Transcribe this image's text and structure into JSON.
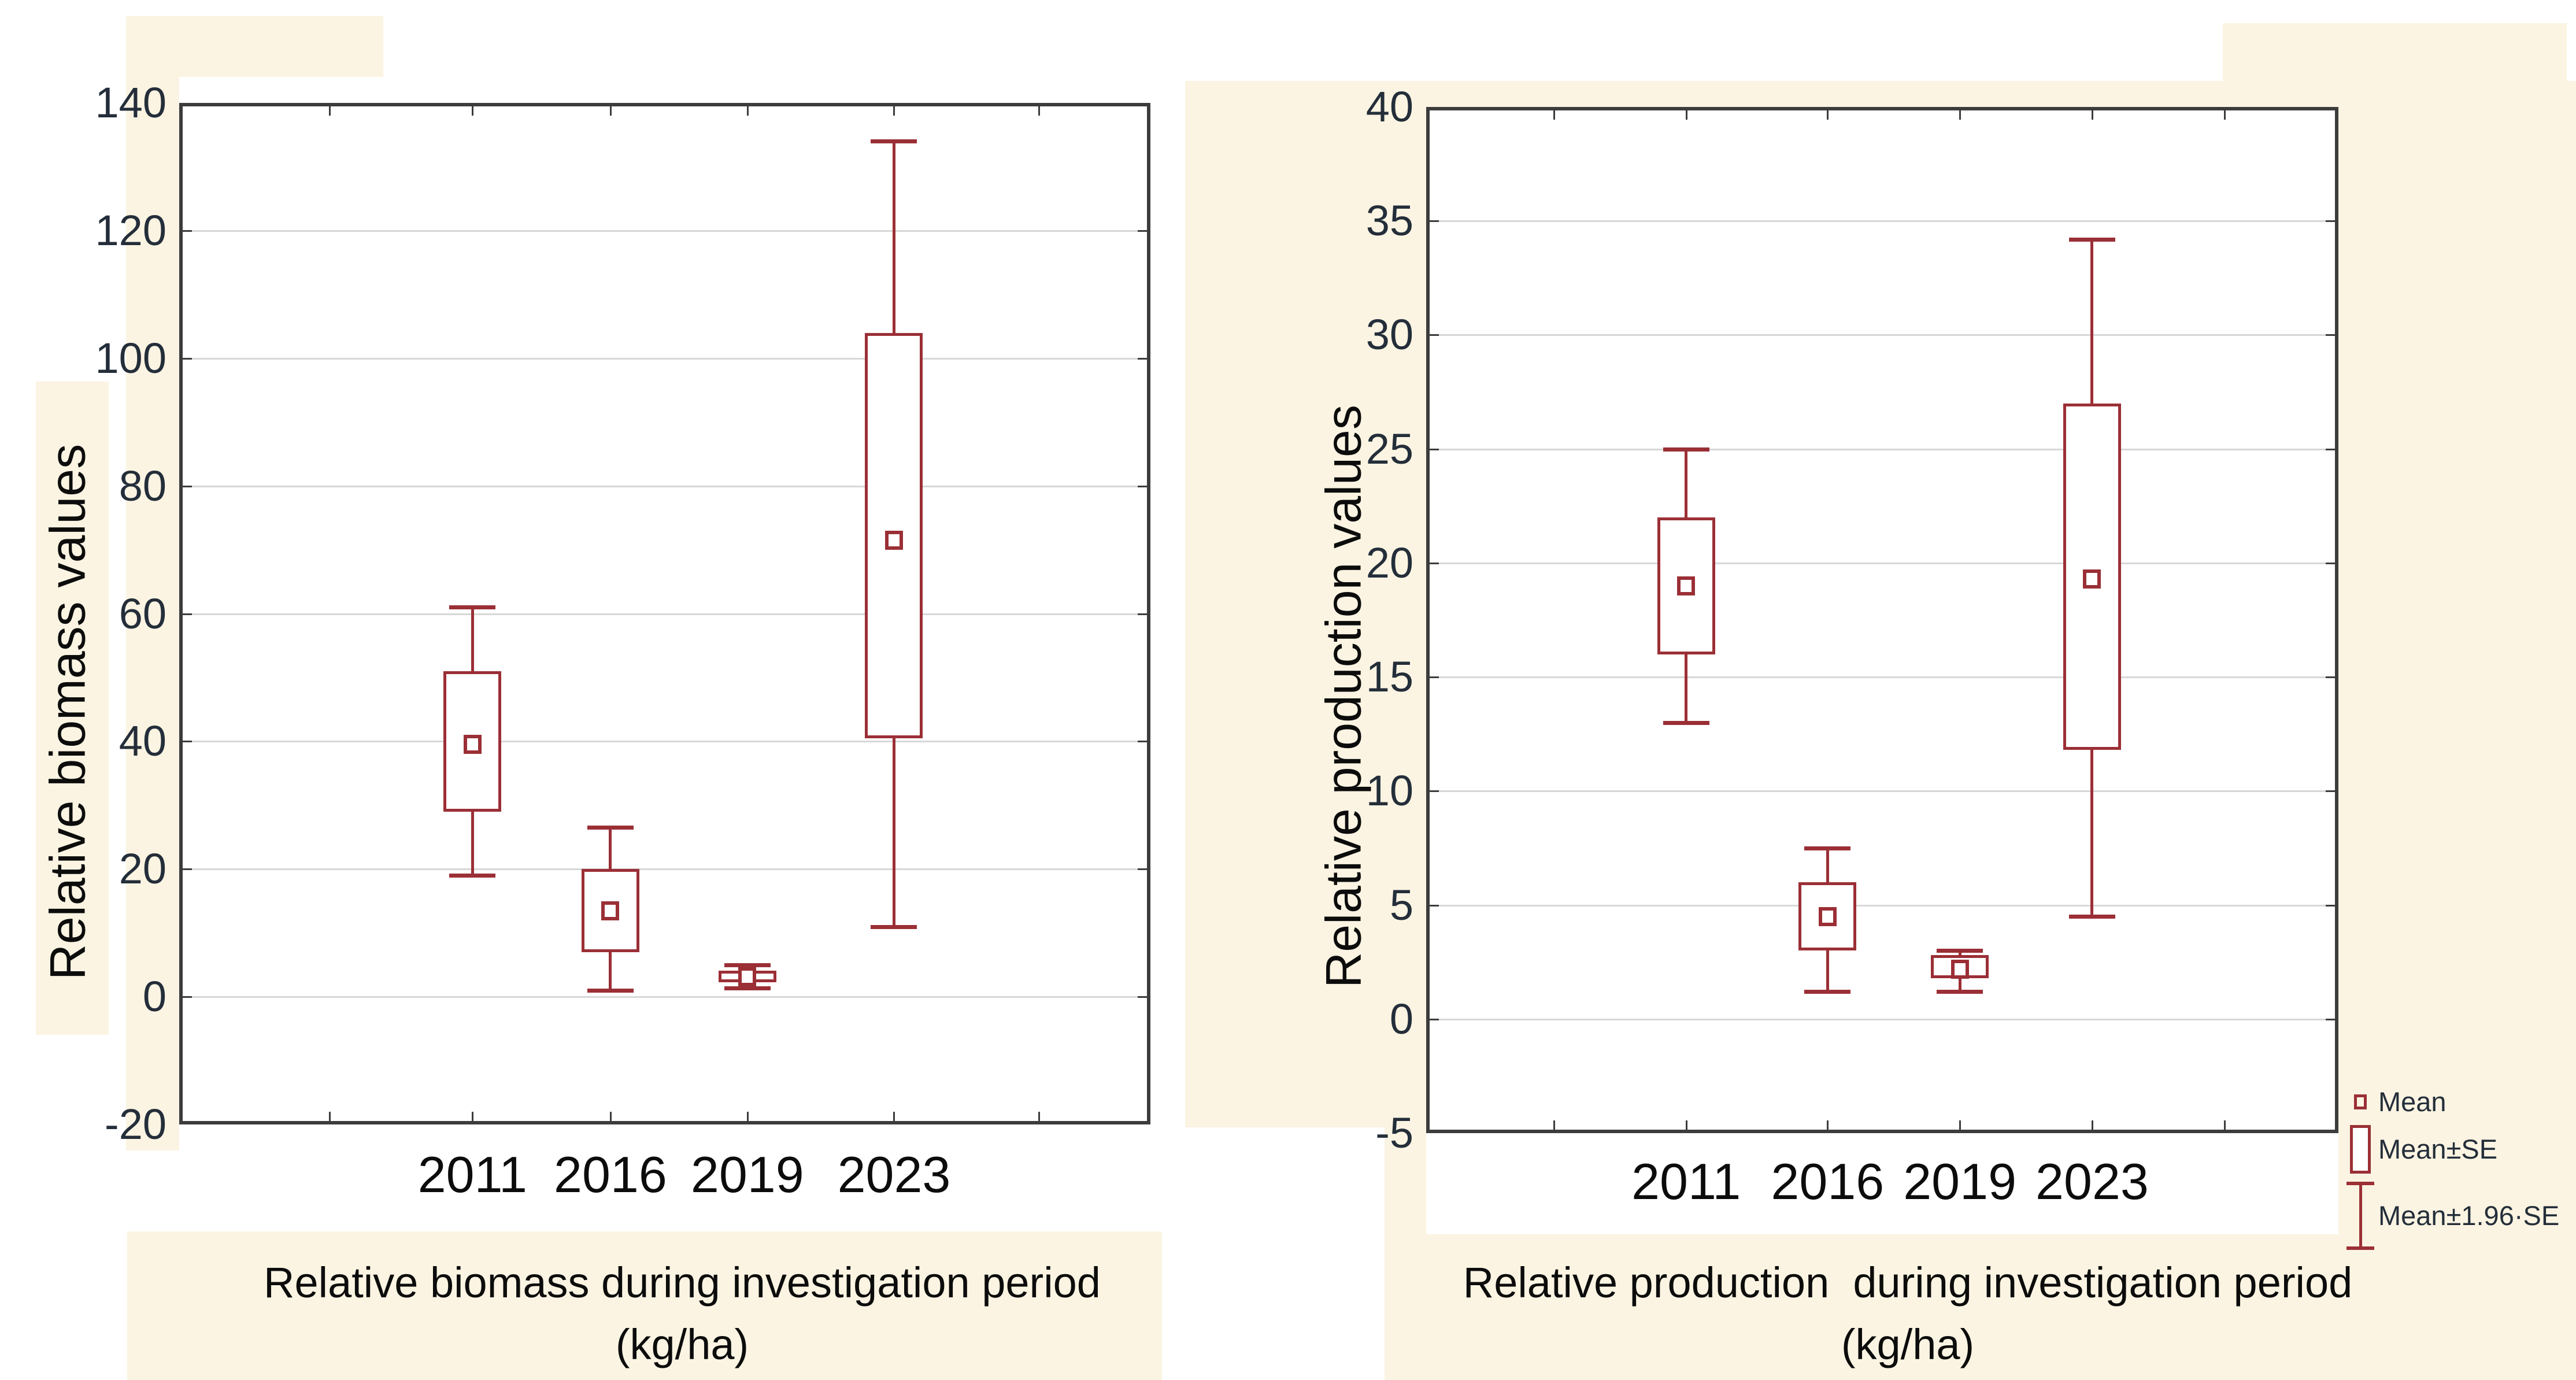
{
  "page": {
    "type": "slide-with-two-statistica-box-plots",
    "background_color": "#FFFFFF",
    "panel_color": "#FBF4E2"
  },
  "colors": {
    "box_red": "#9B2F36",
    "cream": "#FBF4E2",
    "gridline": "#D7D7D7",
    "axis": "#3C3C3C",
    "tick_text": "#242E3A",
    "label_text": "#0C0C0C"
  },
  "legend": {
    "items": [
      "Mean",
      "Mean±SE",
      "Mean±1.96·SE"
    ]
  },
  "chart_data": [
    {
      "type": "box",
      "subtype": "mean-se-whisker",
      "title": "Relative biomass during investigation period",
      "title_line2": "(kg/ha)",
      "xlabel": "",
      "ylabel": "Relative biomass values",
      "ylim": [
        -20,
        140
      ],
      "yticks": [
        140,
        120,
        100,
        80,
        60,
        40,
        20,
        0,
        -20
      ],
      "grid": "horizontal",
      "categories": [
        "2011",
        "2016",
        "2019",
        "2023"
      ],
      "series": [
        {
          "category": "2011",
          "mean": 39.5,
          "se_low": 29,
          "se_high": 51,
          "ci_low": 19,
          "ci_high": 61
        },
        {
          "category": "2016",
          "mean": 13.5,
          "se_low": 7,
          "se_high": 20,
          "ci_low": 1,
          "ci_high": 26.5
        },
        {
          "category": "2019",
          "mean": 3.1,
          "se_low": 2.3,
          "se_high": 4.1,
          "ci_low": 1.4,
          "ci_high": 5
        },
        {
          "category": "2023",
          "mean": 71.5,
          "se_low": 40.5,
          "se_high": 104,
          "ci_low": 11,
          "ci_high": 134
        }
      ]
    },
    {
      "type": "box",
      "subtype": "mean-se-whisker",
      "title": "Relative production  during investigation period",
      "title_line2": "(kg/ha)",
      "xlabel": "",
      "ylabel": "Relative production values",
      "ylim": [
        -5,
        40
      ],
      "yticks": [
        40,
        35,
        30,
        25,
        20,
        15,
        10,
        5,
        0,
        -5
      ],
      "grid": "horizontal",
      "categories": [
        "2011",
        "2016",
        "2019",
        "2023"
      ],
      "series": [
        {
          "category": "2011",
          "mean": 19,
          "se_low": 16,
          "se_high": 22,
          "ci_low": 13,
          "ci_high": 25
        },
        {
          "category": "2016",
          "mean": 4.5,
          "se_low": 3,
          "se_high": 6,
          "ci_low": 1.2,
          "ci_high": 7.5
        },
        {
          "category": "2019",
          "mean": 2.2,
          "se_low": 1.8,
          "se_high": 2.8,
          "ci_low": 1.2,
          "ci_high": 3
        },
        {
          "category": "2023",
          "mean": 19.3,
          "se_low": 11.8,
          "se_high": 27,
          "ci_low": 4.5,
          "ci_high": 34.2
        }
      ]
    }
  ]
}
